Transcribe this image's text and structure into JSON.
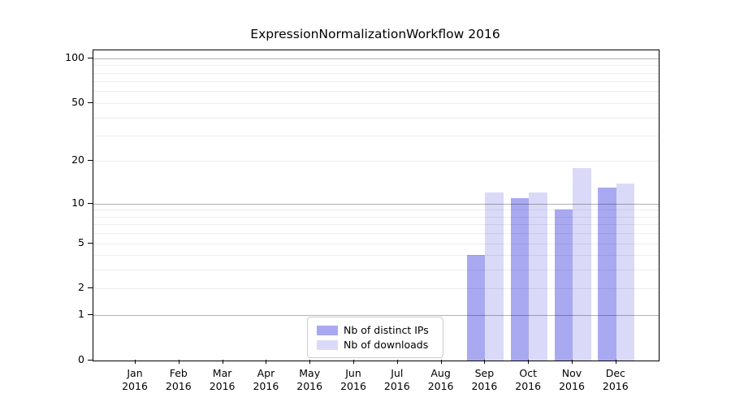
{
  "chart_data": {
    "type": "bar",
    "title": "ExpressionNormalizationWorkflow 2016",
    "categories": [
      "Jan 2016",
      "Feb 2016",
      "Mar 2016",
      "Apr 2016",
      "May 2016",
      "Jun 2016",
      "Jul 2016",
      "Aug 2016",
      "Sep 2016",
      "Oct 2016",
      "Nov 2016",
      "Dec 2016"
    ],
    "series": [
      {
        "name": "Nb of distinct IPs",
        "color": "#a9a9f2",
        "values": [
          0,
          0,
          0,
          0,
          0,
          0,
          0,
          0,
          4,
          11,
          9,
          13
        ]
      },
      {
        "name": "Nb of downloads",
        "color": "#dadaf8",
        "values": [
          0,
          0,
          0,
          0,
          0,
          0,
          0,
          0,
          12,
          12,
          18,
          14
        ]
      }
    ],
    "xlabel": "",
    "ylabel": "",
    "y_scale": "log10(1+y)",
    "ylim": [
      0,
      113
    ],
    "y_ticks": [
      0,
      1,
      2,
      5,
      10,
      20,
      50,
      100
    ],
    "y_minor_gridline_values": [
      2,
      3,
      4,
      5,
      6,
      7,
      8,
      9,
      20,
      30,
      40,
      50,
      60,
      70,
      80,
      90
    ],
    "y_major_gridline_values": [
      1,
      10,
      100
    ],
    "grid": true,
    "legend_position": "bottom-center"
  },
  "colors": {
    "background": "#ffffff",
    "bar_distinct_ips": "#a9a9f2",
    "bar_downloads": "#dadaf8",
    "spine": "#000000",
    "text": "#000000",
    "legend_border": "#cccccc"
  }
}
